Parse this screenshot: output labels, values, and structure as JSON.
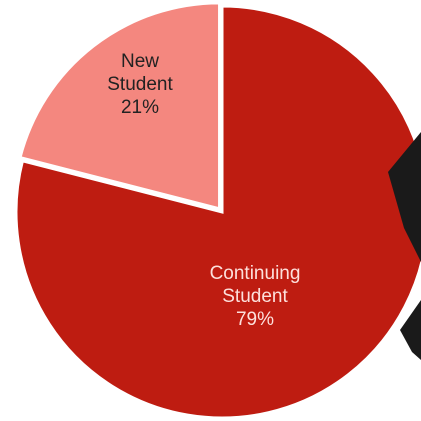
{
  "chart_data": {
    "type": "pie",
    "categories": [
      "New Student",
      "Continuing Student"
    ],
    "values": [
      21,
      79
    ],
    "value_labels": [
      "21%",
      "79%"
    ],
    "colors": [
      "#f4877f",
      "#be1c11"
    ]
  }
}
